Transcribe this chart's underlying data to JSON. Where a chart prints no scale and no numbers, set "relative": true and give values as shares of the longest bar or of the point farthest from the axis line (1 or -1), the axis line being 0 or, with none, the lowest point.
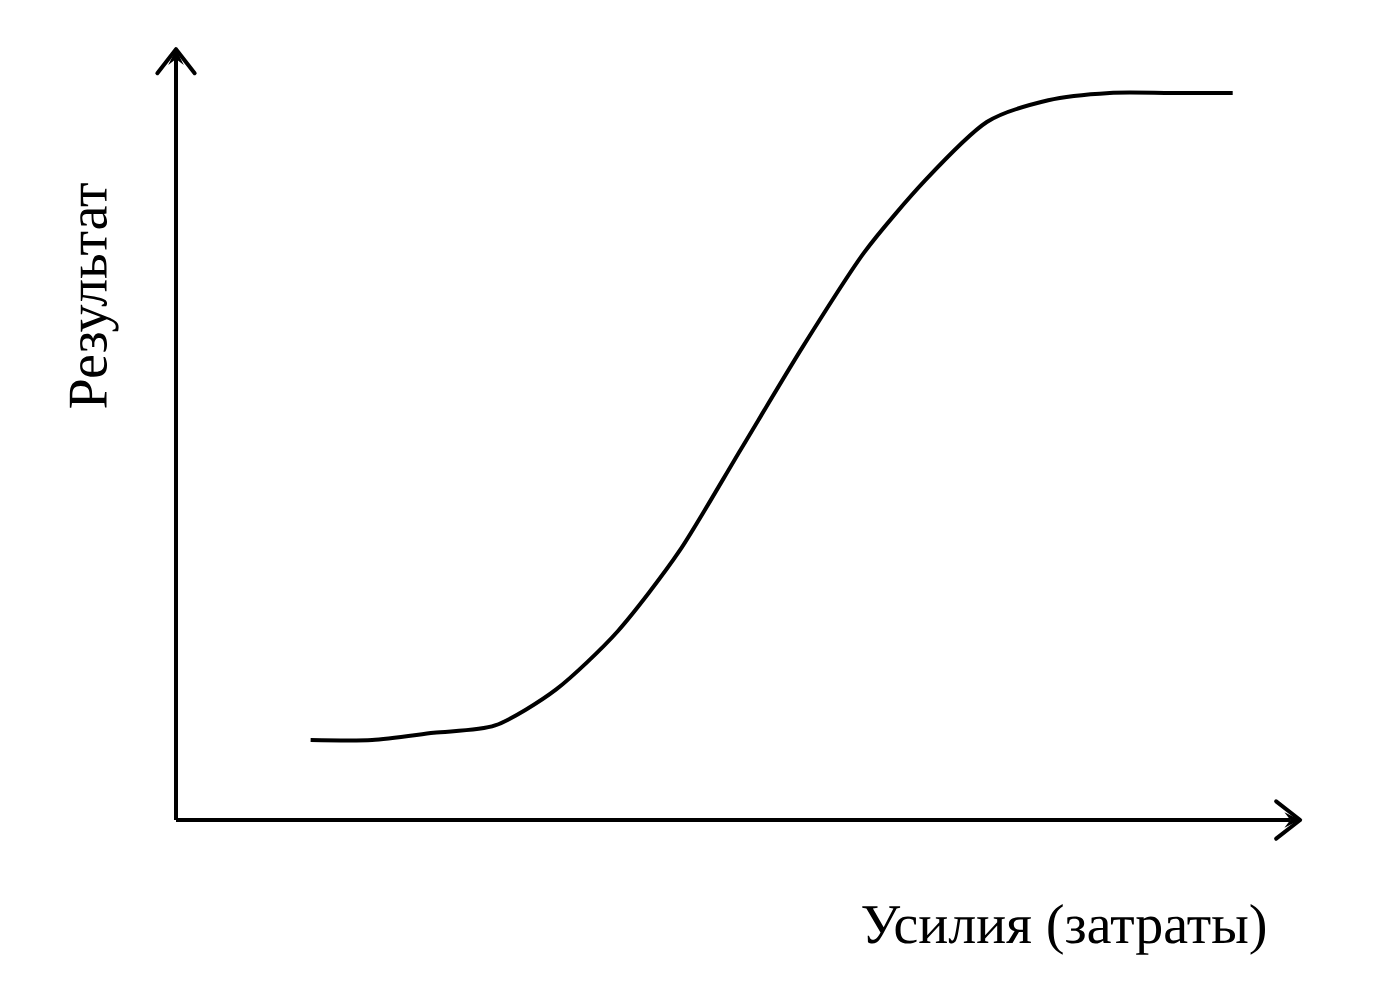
{
  "chart_data": {
    "type": "line",
    "relative": true,
    "xlabel": "Усилия (затраты)",
    "ylabel": "Результат",
    "categories": [
      null,
      null,
      null,
      null,
      null,
      null,
      null,
      null,
      null,
      null,
      null,
      null,
      null,
      null,
      null,
      null
    ],
    "series": [
      {
        "color": "#000000",
        "values": [
          0.11,
          0.11,
          0.12,
          0.13,
          0.18,
          0.26,
          0.37,
          0.51,
          0.65,
          0.78,
          0.88,
          0.96,
          0.99,
          1,
          1,
          1
        ]
      }
    ]
  }
}
